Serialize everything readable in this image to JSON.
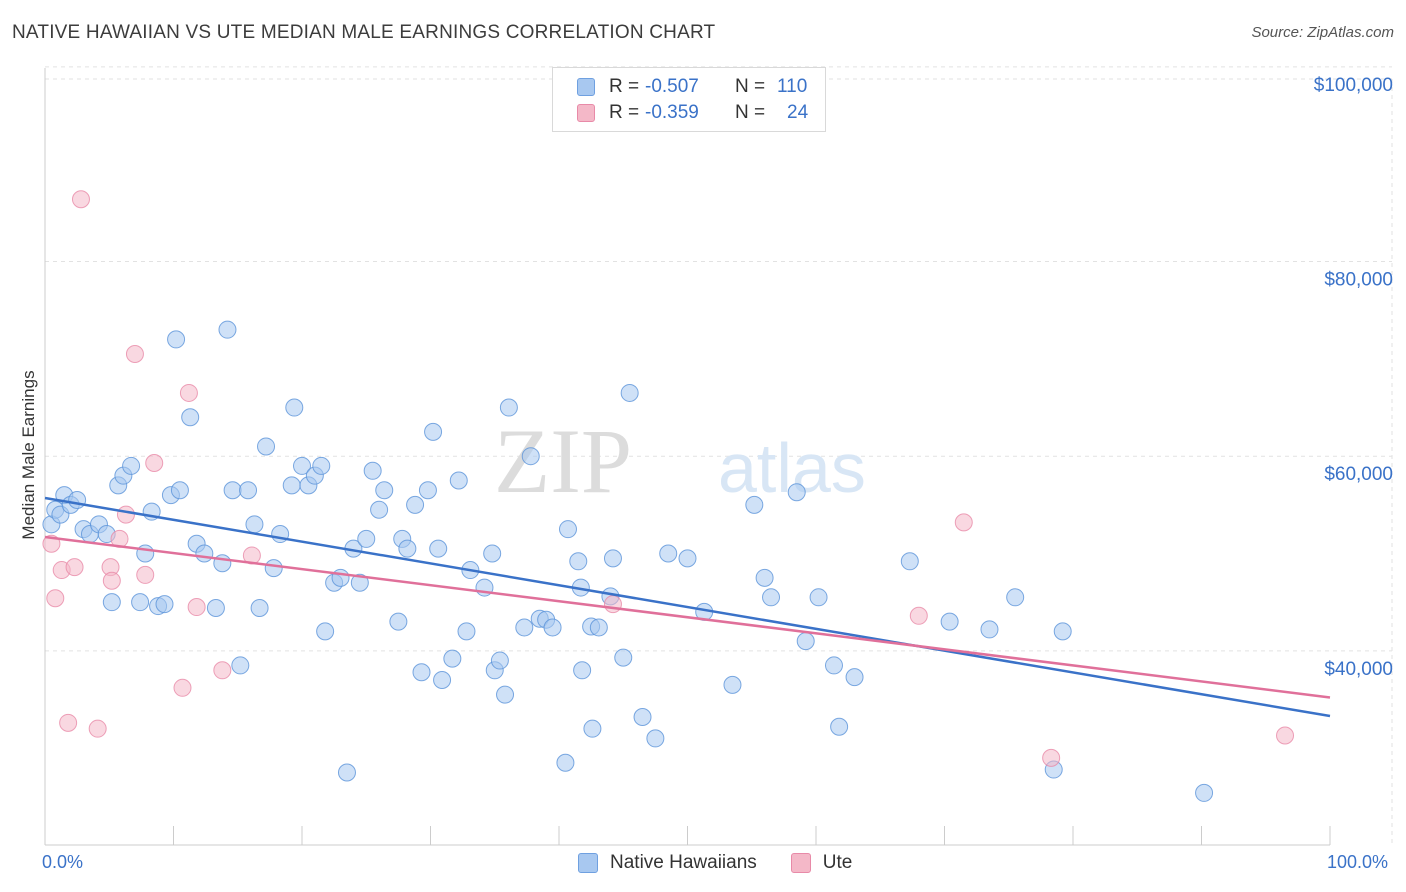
{
  "header": {
    "title": "NATIVE HAWAIIAN VS UTE MEDIAN MALE EARNINGS CORRELATION CHART",
    "source": "Source: ZipAtlas.com"
  },
  "watermark": {
    "zip": "ZIP",
    "atlas": "atlas"
  },
  "legend_top": {
    "series1": {
      "r_label": "R =",
      "r_value": "-0.507",
      "n_label": "N =",
      "n_value": "110",
      "color": "#a8c8f0"
    },
    "series2": {
      "r_label": "R =",
      "r_value": "-0.359",
      "n_label": "N =",
      "n_value": "24",
      "color": "#f4b8c8"
    }
  },
  "legend_bottom": {
    "series1": {
      "label": "Native Hawaiians",
      "color": "#a8c8f0"
    },
    "series2": {
      "label": "Ute",
      "color": "#f4b8c8"
    }
  },
  "chart_data": {
    "type": "scatter",
    "title": "NATIVE HAWAIIAN VS UTE MEDIAN MALE EARNINGS CORRELATION CHART",
    "xlabel": "",
    "ylabel": "Median Male Earnings",
    "xlim": [
      0,
      100
    ],
    "ylim": [
      22000,
      104000
    ],
    "x_tick_labels": [
      "0.0%",
      "100.0%"
    ],
    "y_ticks": [
      40000,
      60000,
      80000,
      100000
    ],
    "y_tick_labels": [
      "$40,000",
      "$60,000",
      "$80,000",
      "$100,000"
    ],
    "grid": true,
    "colors": {
      "native": "#5b93d9",
      "native_fill": "#a8c8f0",
      "ute": "#e88aa8",
      "ute_fill": "#f4b8c8",
      "native_line": "#3a72c8",
      "ute_line": "#e0709a"
    },
    "series": [
      {
        "name": "Native Hawaiians",
        "trend": {
          "x": [
            0,
            100
          ],
          "y": [
            55700,
            33300
          ]
        },
        "points": [
          [
            0.5,
            53000
          ],
          [
            0.8,
            54500
          ],
          [
            1.2,
            54000
          ],
          [
            1.5,
            56000
          ],
          [
            2,
            55000
          ],
          [
            2.5,
            55500
          ],
          [
            3,
            52500
          ],
          [
            3.5,
            52000
          ],
          [
            4.2,
            53000
          ],
          [
            4.8,
            52000
          ],
          [
            5.2,
            45000
          ],
          [
            5.7,
            57000
          ],
          [
            6.1,
            58000
          ],
          [
            6.7,
            59000
          ],
          [
            7.4,
            45000
          ],
          [
            7.8,
            50000
          ],
          [
            8.3,
            54300
          ],
          [
            8.8,
            44600
          ],
          [
            9.3,
            44800
          ],
          [
            9.8,
            56000
          ],
          [
            10.5,
            56500
          ],
          [
            10.2,
            72000
          ],
          [
            11.3,
            64000
          ],
          [
            11.8,
            51000
          ],
          [
            12.4,
            50000
          ],
          [
            13.3,
            44400
          ],
          [
            13.8,
            49000
          ],
          [
            14.2,
            73000
          ],
          [
            14.6,
            56500
          ],
          [
            15.2,
            38500
          ],
          [
            15.8,
            56500
          ],
          [
            16.3,
            53000
          ],
          [
            16.7,
            44400
          ],
          [
            17.2,
            61000
          ],
          [
            17.8,
            48500
          ],
          [
            18.3,
            52000
          ],
          [
            19.2,
            57000
          ],
          [
            19.4,
            65000
          ],
          [
            20,
            59000
          ],
          [
            20.5,
            57000
          ],
          [
            21,
            58000
          ],
          [
            21.5,
            59000
          ],
          [
            21.8,
            42000
          ],
          [
            22.5,
            47000
          ],
          [
            23,
            47500
          ],
          [
            23.5,
            27500
          ],
          [
            24,
            50500
          ],
          [
            24.5,
            47000
          ],
          [
            25,
            51500
          ],
          [
            25.5,
            58500
          ],
          [
            26,
            54500
          ],
          [
            26.4,
            56500
          ],
          [
            27.5,
            43000
          ],
          [
            27.8,
            51500
          ],
          [
            28.2,
            50500
          ],
          [
            28.8,
            55000
          ],
          [
            29.3,
            37800
          ],
          [
            29.8,
            56500
          ],
          [
            30.2,
            62500
          ],
          [
            30.6,
            50500
          ],
          [
            30.9,
            37000
          ],
          [
            31.7,
            39200
          ],
          [
            32.2,
            57500
          ],
          [
            32.8,
            42000
          ],
          [
            33.1,
            48300
          ],
          [
            34.2,
            46500
          ],
          [
            34.8,
            50000
          ],
          [
            35,
            38000
          ],
          [
            35.4,
            39000
          ],
          [
            35.8,
            35500
          ],
          [
            36.1,
            65000
          ],
          [
            37.3,
            42400
          ],
          [
            37.8,
            60000
          ],
          [
            38.5,
            43300
          ],
          [
            39,
            43200
          ],
          [
            39.5,
            42400
          ],
          [
            40.5,
            28500
          ],
          [
            40.7,
            52500
          ],
          [
            41.5,
            49200
          ],
          [
            41.7,
            46500
          ],
          [
            41.8,
            38000
          ],
          [
            42.5,
            42500
          ],
          [
            42.6,
            32000
          ],
          [
            43.1,
            42400
          ],
          [
            44,
            45600
          ],
          [
            44.2,
            49500
          ],
          [
            45,
            39300
          ],
          [
            45.5,
            66500
          ],
          [
            46.5,
            33200
          ],
          [
            47.5,
            31000
          ],
          [
            48.5,
            50000
          ],
          [
            50,
            49500
          ],
          [
            51.3,
            44000
          ],
          [
            53.5,
            36500
          ],
          [
            55.2,
            55000
          ],
          [
            56,
            47500
          ],
          [
            56.5,
            45500
          ],
          [
            58.5,
            56300
          ],
          [
            59.2,
            41000
          ],
          [
            60.2,
            45500
          ],
          [
            61.4,
            38500
          ],
          [
            61.8,
            32200
          ],
          [
            63,
            37300
          ],
          [
            67.3,
            49200
          ],
          [
            70.4,
            43000
          ],
          [
            73.5,
            42200
          ],
          [
            75.5,
            45500
          ],
          [
            78.5,
            27800
          ],
          [
            79.2,
            42000
          ],
          [
            90.2,
            25400
          ]
        ]
      },
      {
        "name": "Ute",
        "trend": {
          "x": [
            0,
            100
          ],
          "y": [
            51700,
            35200
          ]
        },
        "points": [
          [
            0.5,
            51000
          ],
          [
            0.8,
            45400
          ],
          [
            1.3,
            48300
          ],
          [
            1.8,
            32600
          ],
          [
            2.3,
            48600
          ],
          [
            2.8,
            86400
          ],
          [
            4.1,
            32000
          ],
          [
            5.1,
            48600
          ],
          [
            5.2,
            47200
          ],
          [
            5.8,
            51500
          ],
          [
            6.3,
            54000
          ],
          [
            7,
            70500
          ],
          [
            7.8,
            47800
          ],
          [
            8.5,
            59300
          ],
          [
            10.7,
            36200
          ],
          [
            11.2,
            66500
          ],
          [
            11.8,
            44500
          ],
          [
            13.8,
            38000
          ],
          [
            16.1,
            49800
          ],
          [
            44.2,
            44800
          ],
          [
            68,
            43600
          ],
          [
            71.5,
            53200
          ],
          [
            78.3,
            29000
          ],
          [
            96.5,
            31300
          ]
        ]
      }
    ]
  }
}
